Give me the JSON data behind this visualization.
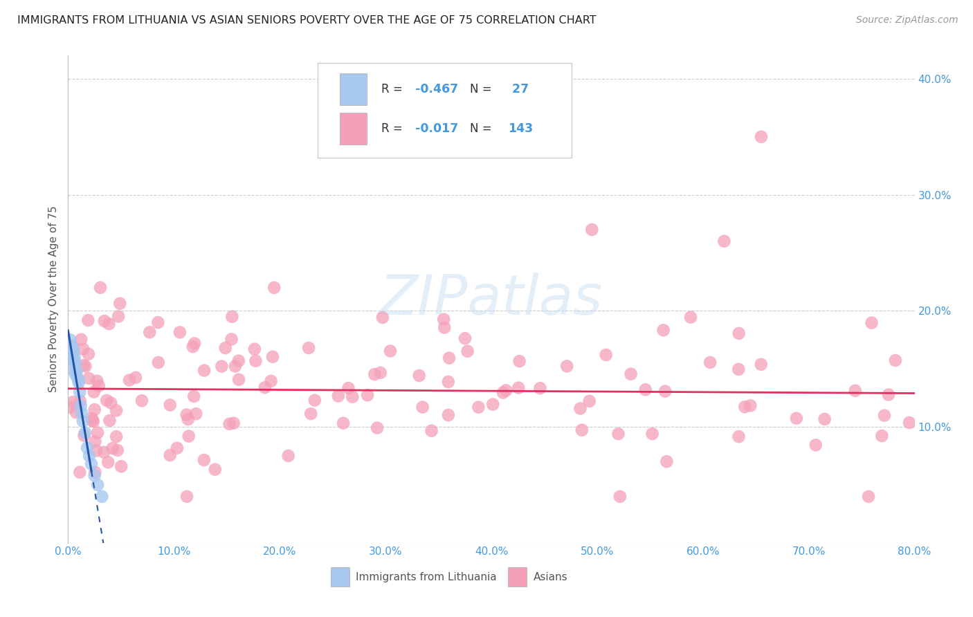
{
  "title": "IMMIGRANTS FROM LITHUANIA VS ASIAN SENIORS POVERTY OVER THE AGE OF 75 CORRELATION CHART",
  "source": "Source: ZipAtlas.com",
  "ylabel": "Seniors Poverty Over the Age of 75",
  "xlim": [
    0,
    0.8
  ],
  "ylim": [
    0,
    0.42
  ],
  "xticks": [
    0.0,
    0.1,
    0.2,
    0.3,
    0.4,
    0.5,
    0.6,
    0.7,
    0.8
  ],
  "xticklabels": [
    "0.0%",
    "10.0%",
    "20.0%",
    "30.0%",
    "40.0%",
    "50.0%",
    "60.0%",
    "70.0%",
    "80.0%"
  ],
  "yticks": [
    0.0,
    0.1,
    0.2,
    0.3,
    0.4
  ],
  "yticklabels": [
    "",
    "10.0%",
    "20.0%",
    "30.0%",
    "40.0%"
  ],
  "watermark": "ZIPatlas",
  "legend_R1": "-0.467",
  "legend_N1": "27",
  "legend_R2": "-0.017",
  "legend_N2": "143",
  "color_blue": "#A8C8F0",
  "color_pink": "#F4A0B8",
  "color_blue_line": "#2255AA",
  "color_pink_line": "#E03060",
  "title_color": "#333333",
  "axis_color": "#4499DD",
  "legend_label1": "Immigrants from Lithuania",
  "legend_label2": "Asians"
}
